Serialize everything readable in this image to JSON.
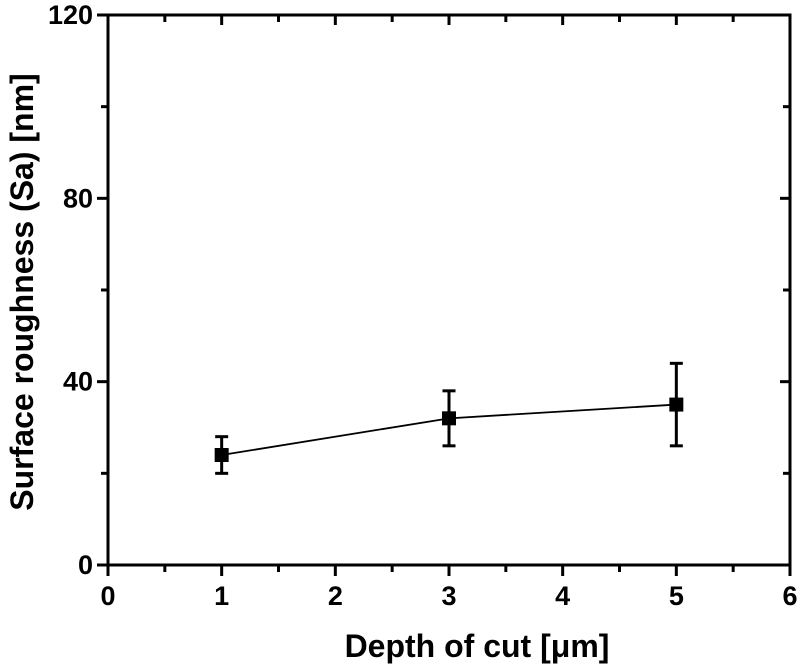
{
  "figure": {
    "background": "#ffffff",
    "ink_color": "#000000"
  },
  "chart_data": {
    "type": "line",
    "title": "",
    "xlabel": "Depth of cut [μm]",
    "ylabel": "Surface roughness (Sa) [nm]",
    "xlim": [
      0,
      6
    ],
    "ylim": [
      0,
      120
    ],
    "x_major_ticks": [
      0,
      1,
      2,
      3,
      4,
      5,
      6
    ],
    "x_minor_ticks": [
      0.5,
      1.5,
      2.5,
      3.5,
      4.5,
      5.5
    ],
    "y_major_ticks": [
      0,
      40,
      80,
      120
    ],
    "y_minor_ticks": [
      20,
      60,
      100
    ],
    "grid": "off",
    "legend": "none",
    "frame": "box",
    "tick_style": "out-bottom-left, in-top-right",
    "series": [
      {
        "name": "surface-roughness-vs-depth-of-cut",
        "marker": "filled-square",
        "x": [
          1,
          3,
          5
        ],
        "y": [
          24,
          32,
          35
        ],
        "y_err": [
          4,
          6,
          9
        ]
      }
    ]
  }
}
